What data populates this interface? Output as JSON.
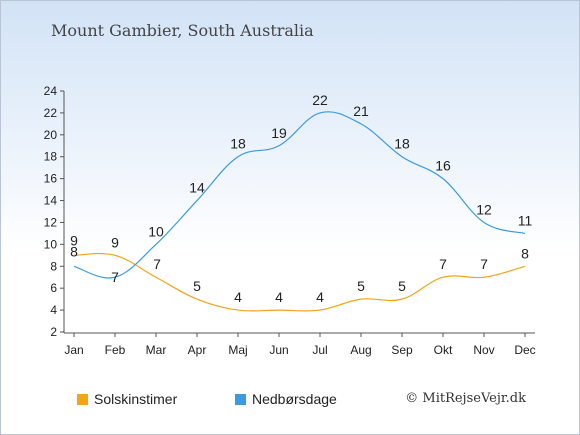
{
  "colors": {
    "sunshine": "#f5a31a",
    "rain": "#3a9be0"
  },
  "chart_data": {
    "type": "line",
    "title": "Mount Gambier, South Australia",
    "categories": [
      "Jan",
      "Feb",
      "Mar",
      "Apr",
      "Maj",
      "Jun",
      "Jul",
      "Aug",
      "Sep",
      "Okt",
      "Nov",
      "Dec"
    ],
    "ylim": [
      2,
      24
    ],
    "yticks": [
      2,
      4,
      6,
      8,
      10,
      12,
      14,
      16,
      18,
      20,
      22,
      24
    ],
    "grid": false,
    "legend_position": "bottom",
    "series": [
      {
        "name": "Solskinstimer",
        "values": [
          9,
          9,
          7,
          5,
          4,
          4,
          4,
          5,
          5,
          7,
          7,
          8
        ]
      },
      {
        "name": "Nedbørsdage",
        "values": [
          8,
          7,
          10,
          14,
          18,
          19,
          22,
          21,
          18,
          16,
          12,
          11
        ]
      }
    ]
  },
  "copyright": "© MitRejseVejr.dk"
}
